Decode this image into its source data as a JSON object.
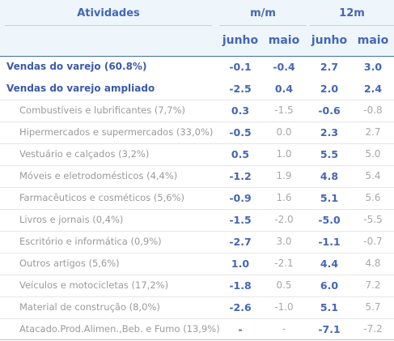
{
  "header": {
    "activities": "Atividades",
    "group_mm": "m/m",
    "group_12m": "12m",
    "col_junho_mm": "junho",
    "col_maio_mm": "maio",
    "col_junho_12m": "junho",
    "col_maio_12m": "maio"
  },
  "rows": [
    {
      "label": "Vendas do varejo (60.8%)",
      "kind": "main",
      "v": [
        "-0.1",
        "-0.4",
        "2.7",
        "3.0"
      ]
    },
    {
      "label": "Vendas do varejo ampliado",
      "kind": "main",
      "v": [
        "-2.5",
        "0.4",
        "2.0",
        "2.4"
      ]
    },
    {
      "label": "Combustíveis e lubrificantes (7,7%)",
      "kind": "sub",
      "v": [
        "0.3",
        "-1.5",
        "-0.6",
        "-0.8"
      ]
    },
    {
      "label": "Hipermercados e supermercados (33,0%)",
      "kind": "sub",
      "v": [
        "-0.5",
        "0.0",
        "2.3",
        "2.7"
      ]
    },
    {
      "label": "Vestuário e calçados (3,2%)",
      "kind": "sub",
      "v": [
        "0.5",
        "1.0",
        "5.5",
        "5.0"
      ]
    },
    {
      "label": "Móveis e eletrodomésticos (4,4%)",
      "kind": "sub",
      "v": [
        "-1.2",
        "1.9",
        "4.8",
        "5.4"
      ]
    },
    {
      "label": "Farmacêuticos e cosméticos (5,6%)",
      "kind": "sub",
      "v": [
        "-0.9",
        "1.6",
        "5.1",
        "5.6"
      ]
    },
    {
      "label": "Livros e jornais (0,4%)",
      "kind": "sub",
      "v": [
        "-1.5",
        "-2.0",
        "-5.0",
        "-5.5"
      ]
    },
    {
      "label": "Escritório e informática (0,9%)",
      "kind": "sub",
      "v": [
        "-2.7",
        "3.0",
        "-1.1",
        "-0.7"
      ]
    },
    {
      "label": "Outros artigos (5,6%)",
      "kind": "sub",
      "v": [
        "1.0",
        "-2.1",
        "4.4",
        "4.8"
      ]
    },
    {
      "label": "Veículos e motocicletas (17,2%)",
      "kind": "sub",
      "v": [
        "-1.8",
        "0.5",
        "6.0",
        "7.2"
      ]
    },
    {
      "label": "Material de construção (8,0%)",
      "kind": "sub",
      "v": [
        "-2.6",
        "-1.0",
        "5.1",
        "5.7"
      ]
    },
    {
      "label": "Atacado.Prod.Alimen.,Beb. e Fumo (13,9%)",
      "kind": "sub",
      "v": [
        "-",
        "-",
        "-7.1",
        "-7.2"
      ]
    }
  ]
}
